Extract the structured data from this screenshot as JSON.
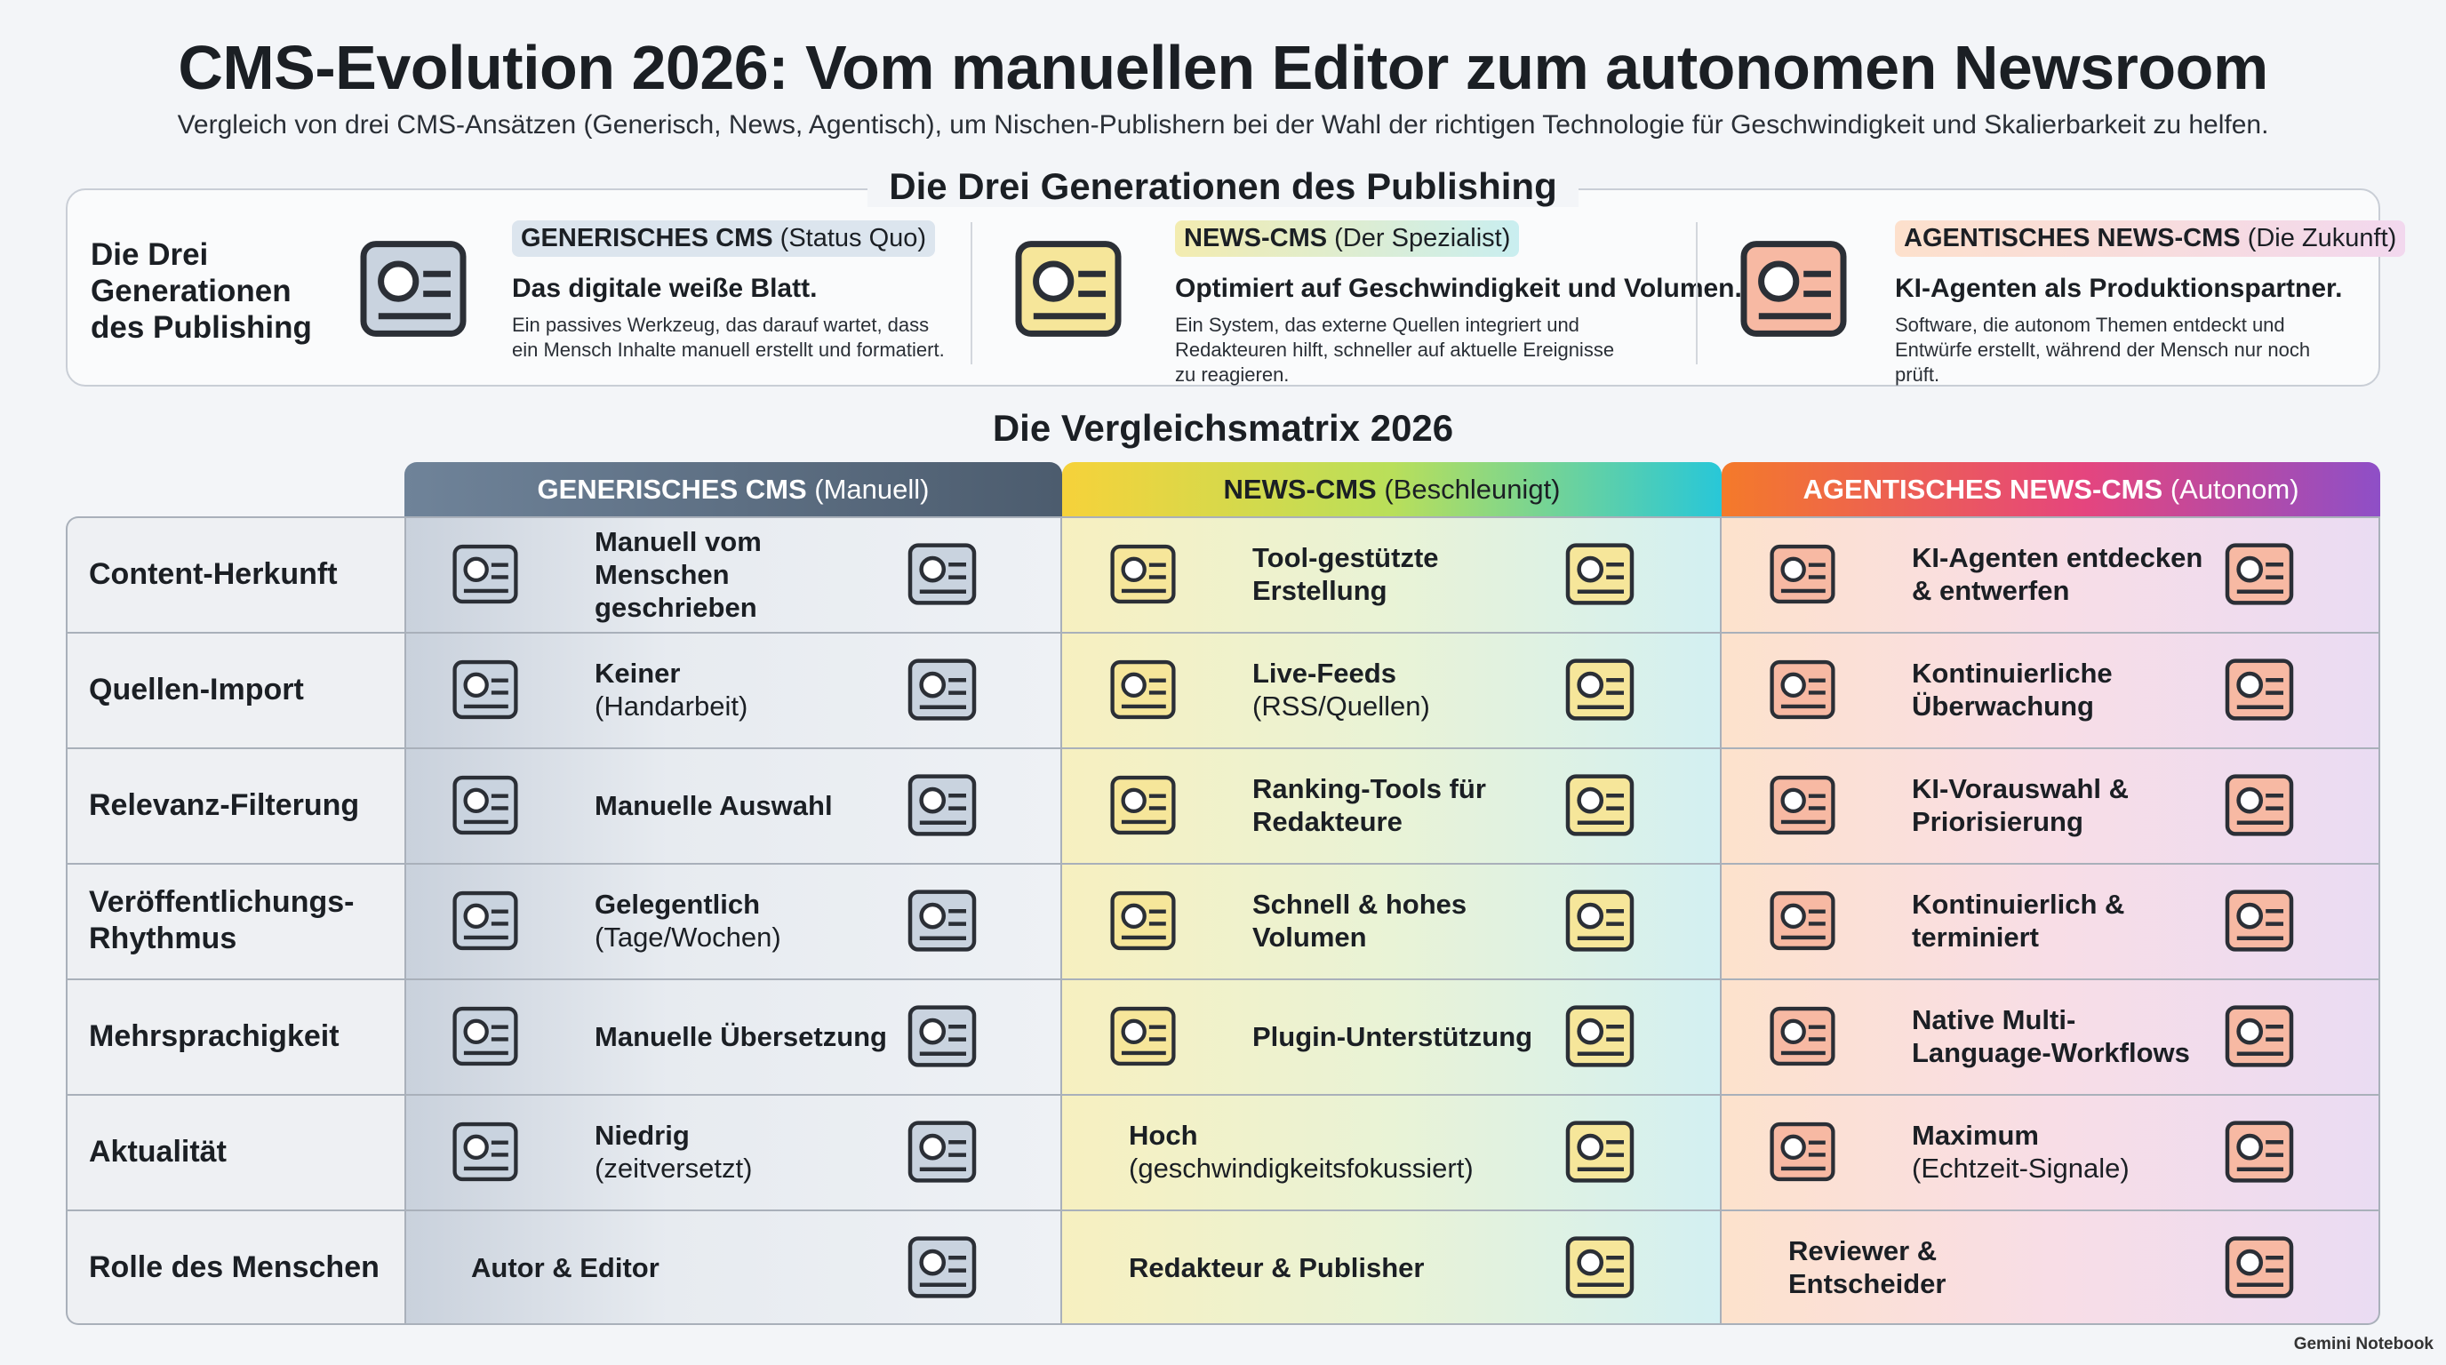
{
  "header": {
    "title": "CMS-Evolution 2026: Vom manuellen Editor zum autonomen Newsroom",
    "subtitle": "Vergleich von drei CMS-Ansätzen (Generisch, News, Agentisch), um Nischen-Publishern bei der Wahl der richtigen Technologie für Geschwindigkeit und Skalierbarkeit zu helfen."
  },
  "generations": {
    "title": "Die Drei Generationen des Publishing",
    "side_label": "Die Drei Generationen des Publishing",
    "items": [
      {
        "name": "GENERISCHES CMS",
        "qualifier": "(Status Quo)",
        "heading": "Das digitale weiße Blatt.",
        "text": "Ein passives Werkzeug, das darauf wartet, dass ein Mensch Inhalte manuell erstellt und formatiert."
      },
      {
        "name": "NEWS-CMS",
        "qualifier": "(Der Spezialist)",
        "heading": "Optimiert auf Geschwindigkeit und Volumen.",
        "text": "Ein System, das externe Quellen integriert und Redakteuren hilft, schneller auf aktuelle Ereignisse zu reagieren."
      },
      {
        "name": "AGENTISCHES NEWS-CMS",
        "qualifier": "(Die Zukunft)",
        "heading": "KI-Agenten als Produktionspartner.",
        "text": "Software, die autonom Themen entdeckt und Entwürfe erstellt, während der Mensch nur noch prüft."
      }
    ]
  },
  "matrix": {
    "title": "Die Vergleichsmatrix 2026",
    "columns": [
      {
        "name": "GENERISCHES CMS",
        "qualifier": "(Manuell)"
      },
      {
        "name": "NEWS-CMS",
        "qualifier": "(Beschleunigt)"
      },
      {
        "name": "AGENTISCHES NEWS-CMS",
        "qualifier": "(Autonom)"
      }
    ],
    "rows": [
      {
        "label": "Content-Herkunft",
        "cells": [
          {
            "text": "Manuell vom Menschen geschrieben"
          },
          {
            "text": "Tool-gestützte Erstellung"
          },
          {
            "text": "KI-Agenten entdecken & entwerfen"
          }
        ]
      },
      {
        "label": "Quellen-Import",
        "cells": [
          {
            "text": "Keiner",
            "note": "(Handarbeit)"
          },
          {
            "text": "Live-Feeds",
            "note": "(RSS/Quellen)"
          },
          {
            "text": "Kontinuierliche Überwachung"
          }
        ]
      },
      {
        "label": "Relevanz-Filterung",
        "cells": [
          {
            "text": "Manuelle Auswahl"
          },
          {
            "text": "Ranking-Tools für Redakteure"
          },
          {
            "text": "KI-Vorauswahl & Priorisierung"
          }
        ]
      },
      {
        "label": "Veröffentlichungs-Rhythmus",
        "cells": [
          {
            "text": "Gelegentlich",
            "note": "(Tage/Wochen)"
          },
          {
            "text": "Schnell & hohes Volumen"
          },
          {
            "text": "Kontinuierlich & terminiert"
          }
        ]
      },
      {
        "label": "Mehrsprachigkeit",
        "cells": [
          {
            "text": "Manuelle Übersetzung"
          },
          {
            "text": "Plugin-Unterstützung"
          },
          {
            "text": "Native Multi-Language-Workflows"
          }
        ]
      },
      {
        "label": "Aktualität",
        "cells": [
          {
            "text": "Niedrig",
            "note": "(zeitversetzt)"
          },
          {
            "text": "Hoch",
            "note": "(geschwindigkeitsfokussiert)"
          },
          {
            "text": "Maximum",
            "note": "(Echtzeit-Signale)"
          }
        ]
      },
      {
        "label": "Rolle des Menschen",
        "cells": [
          {
            "text": "Autor & Editor"
          },
          {
            "text": "Redakteur & Publisher"
          },
          {
            "text": "Reviewer & Entscheider"
          }
        ]
      }
    ]
  },
  "footer": {
    "brand": "Gemini Notebook"
  }
}
